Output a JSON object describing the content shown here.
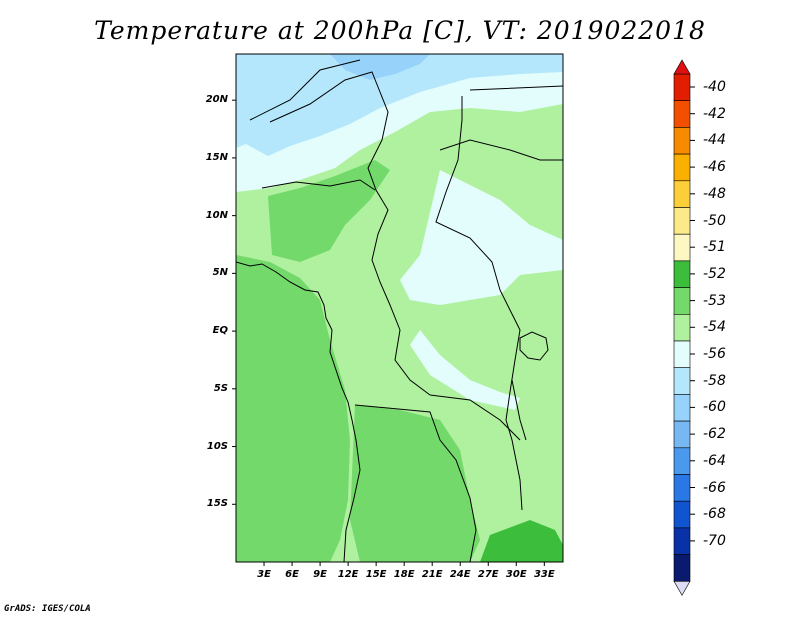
{
  "title": "Temperature at 200hPa [C], VT: 2019022018",
  "credit": "GrADS: IGES/COLA",
  "map": {
    "lat_ticks": [
      "20N",
      "15N",
      "10N",
      "5N",
      "EQ",
      "5S",
      "10S",
      "15S"
    ],
    "lon_ticks": [
      "3E",
      "6E",
      "9E",
      "12E",
      "15E",
      "18E",
      "21E",
      "24E",
      "27E",
      "30E",
      "33E"
    ],
    "lon_range": [
      0,
      35
    ],
    "lat_range": [
      -20,
      24
    ]
  },
  "colorbar": {
    "levels": [
      "-40",
      "-42",
      "-44",
      "-46",
      "-48",
      "-50",
      "-51",
      "-52",
      "-53",
      "-54",
      "-56",
      "-58",
      "-60",
      "-62",
      "-64",
      "-66",
      "-68",
      "-70"
    ],
    "colors": [
      "#e11e00",
      "#f24f00",
      "#f78b00",
      "#fab000",
      "#fbce3a",
      "#fce98a",
      "#fdf8c3",
      "#3cbe3c",
      "#74d96b",
      "#b0f1a0",
      "#e2fdfc",
      "#b4e7fb",
      "#96d2fa",
      "#78b8f2",
      "#4b99ed",
      "#2a78e5",
      "#1055cf",
      "#0a32a8",
      "#0a1a6e"
    ],
    "top_color": "#dd1111",
    "bottom_color": "#dcdcf4"
  }
}
